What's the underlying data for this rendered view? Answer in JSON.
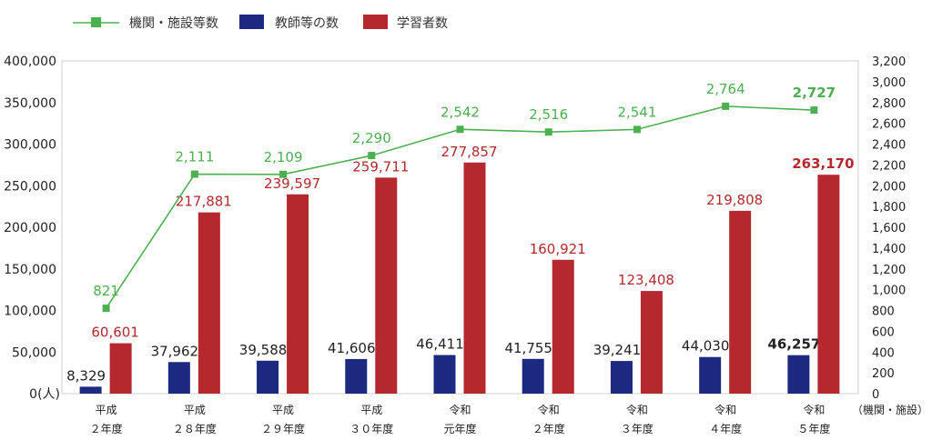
{
  "chart_data": {
    "type": "bar",
    "categories": [
      [
        "平成",
        "２年度"
      ],
      [
        "平成",
        "２８年度"
      ],
      [
        "平成",
        "２９年度"
      ],
      [
        "平成",
        "３０年度"
      ],
      [
        "令和",
        "元年度"
      ],
      [
        "令和",
        "２年度"
      ],
      [
        "令和",
        "３年度"
      ],
      [
        "令和",
        "４年度"
      ],
      [
        "令和",
        "５年度"
      ]
    ],
    "series": [
      {
        "name": "機関・施設等数",
        "kind": "line",
        "axis": "right",
        "color": "#4caf50",
        "label_color": "#4caf50",
        "values": [
          821,
          2111,
          2109,
          2290,
          2542,
          2516,
          2541,
          2764,
          2727
        ],
        "labels": [
          "821",
          "2,111",
          "2,109",
          "2,290",
          "2,542",
          "2,516",
          "2,541",
          "2,764",
          "2,727"
        ]
      },
      {
        "name": "教師等の数",
        "kind": "bar",
        "axis": "left",
        "color": "#1b2a80",
        "label_color": "#222222",
        "values": [
          8329,
          37962,
          39588,
          41606,
          46411,
          41755,
          39241,
          44030,
          46257
        ],
        "labels": [
          "8,329",
          "37,962",
          "39,588",
          "41,606",
          "46,411",
          "41,755",
          "39,241",
          "44,030",
          "46,257"
        ]
      },
      {
        "name": "学習者数",
        "kind": "bar",
        "axis": "left",
        "color": "#b5282e",
        "label_color": "#b5282e",
        "values": [
          60601,
          217881,
          239597,
          259711,
          277857,
          160921,
          123408,
          219808,
          263170
        ],
        "labels": [
          "60,601",
          "217,881",
          "239,597",
          "259,711",
          "277,857",
          "160,921",
          "123,408",
          "219,808",
          "263,170"
        ]
      }
    ],
    "y_left": {
      "range": [
        0,
        400000
      ],
      "ticks": [
        "0(人)",
        "50,000",
        "100,000",
        "150,000",
        "200,000",
        "250,000",
        "300,000",
        "350,000",
        "400,000"
      ]
    },
    "y_right": {
      "range": [
        0,
        3200
      ],
      "ticks": [
        "0",
        "200",
        "400",
        "600",
        "800",
        "1,000",
        "1,200",
        "1,400",
        "1,600",
        "1,800",
        "2,000",
        "2,200",
        "2,400",
        "2,600",
        "2,800",
        "3,000",
        "3,200"
      ],
      "unit": "（機関・施設）"
    },
    "legend": "top",
    "grid": false,
    "highlight_last": true
  }
}
